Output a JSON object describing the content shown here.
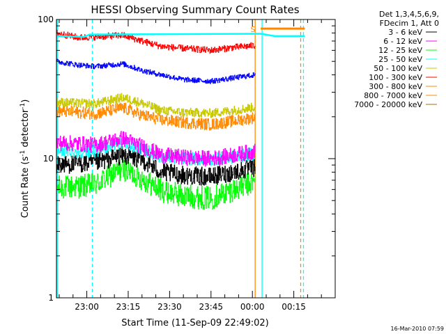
{
  "chart_data": {
    "type": "line",
    "title": "HESSI Observing Summary Count Rates",
    "xlabel": "Start Time (11-Sep-09 22:49:02)",
    "ylabel_parts": [
      "Count Rate (s",
      "-1",
      " detector",
      "-1",
      ")"
    ],
    "timestamp": "16-Mar-2010 07:59",
    "y_scale": "log",
    "ylim": [
      1,
      100
    ],
    "y_ticks": [
      {
        "value": 1,
        "label": "1"
      },
      {
        "value": 10,
        "label": "10"
      },
      {
        "value": 100,
        "label": "100"
      }
    ],
    "xlim_minutes": [
      0,
      101
    ],
    "x_ticks": [
      {
        "label": "23:00",
        "minute": 11
      },
      {
        "label": "23:15",
        "minute": 26
      },
      {
        "label": "23:30",
        "minute": 41
      },
      {
        "label": "23:45",
        "minute": 56
      },
      {
        "label": "00:00",
        "minute": 71
      },
      {
        "label": "00:15",
        "minute": 86
      }
    ],
    "legend_position": "top-right, outside plot",
    "legend_header": [
      "Det 1,3,4,5,6,9,",
      "FDecim 1, Att 0"
    ],
    "series": [
      {
        "name": "3 - 6 keV",
        "color": "#000000",
        "anchors": [
          [
            0,
            9.0
          ],
          [
            8,
            9.2
          ],
          [
            14,
            9.3
          ],
          [
            24,
            10.6
          ],
          [
            31,
            9.8
          ],
          [
            38,
            8.0
          ],
          [
            46,
            7.6
          ],
          [
            56,
            7.4
          ],
          [
            64,
            8.0
          ],
          [
            72,
            8.6
          ]
        ],
        "noise": 0.07
      },
      {
        "name": "6 - 12 keV",
        "color": "#ff00ff",
        "anchors": [
          [
            0,
            13.0
          ],
          [
            8,
            12.8
          ],
          [
            14,
            12.5
          ],
          [
            24,
            14.0
          ],
          [
            31,
            12.2
          ],
          [
            38,
            10.6
          ],
          [
            46,
            10.2
          ],
          [
            56,
            10.0
          ],
          [
            64,
            10.6
          ],
          [
            72,
            11.3
          ]
        ],
        "noise": 0.06
      },
      {
        "name": "12 - 25 keV",
        "color": "#00ff00",
        "anchors": [
          [
            0,
            6.2
          ],
          [
            8,
            6.3
          ],
          [
            14,
            6.5
          ],
          [
            24,
            8.5
          ],
          [
            31,
            7.2
          ],
          [
            38,
            5.9
          ],
          [
            46,
            5.4
          ],
          [
            56,
            5.2
          ],
          [
            64,
            6.0
          ],
          [
            72,
            6.8
          ]
        ],
        "noise": 0.09
      },
      {
        "name": "25 - 50 keV",
        "color": "#00ffff",
        "anchors": [
          [
            0,
            11.5
          ],
          [
            8,
            11.3
          ],
          [
            14,
            11.4
          ],
          [
            24,
            13.2
          ],
          [
            31,
            11.7
          ],
          [
            38,
            10.3
          ],
          [
            46,
            10.0
          ],
          [
            56,
            9.9
          ],
          [
            64,
            10.3
          ],
          [
            72,
            10.9
          ]
        ],
        "noise": 0.05
      },
      {
        "name": "50 - 100 keV",
        "color": "#c8c800",
        "anchors": [
          [
            0,
            25.5
          ],
          [
            8,
            25.0
          ],
          [
            14,
            24.8
          ],
          [
            24,
            27.5
          ],
          [
            31,
            25.0
          ],
          [
            38,
            22.2
          ],
          [
            46,
            21.5
          ],
          [
            56,
            21.2
          ],
          [
            64,
            22.2
          ],
          [
            72,
            23.5
          ]
        ],
        "noise": 0.035
      },
      {
        "name": "100 - 300 keV",
        "color": "#ff0000",
        "anchors": [
          [
            0,
            80
          ],
          [
            8,
            74
          ],
          [
            14,
            75
          ],
          [
            24,
            77
          ],
          [
            31,
            70
          ],
          [
            38,
            64
          ],
          [
            46,
            62
          ],
          [
            56,
            60
          ],
          [
            64,
            63
          ],
          [
            72,
            65
          ]
        ],
        "noise": 0.025
      },
      {
        "name": "300 - 800 keV",
        "color": "#ff8800",
        "anchors": [
          [
            0,
            22.0
          ],
          [
            8,
            21.5
          ],
          [
            14,
            21.0
          ],
          [
            24,
            23.2
          ],
          [
            31,
            20.5
          ],
          [
            38,
            19.0
          ],
          [
            46,
            18.2
          ],
          [
            56,
            17.6
          ],
          [
            64,
            18.6
          ],
          [
            72,
            19.8
          ]
        ],
        "noise": 0.045
      },
      {
        "name": "800 - 7000 keV",
        "color": "#ff8800",
        "anchors": [
          [
            74,
            86
          ],
          [
            90,
            86
          ]
        ],
        "noise": 0
      },
      {
        "name": "7000 - 20000 keV",
        "color": "#a07000",
        "anchors": [],
        "noise": 0
      }
    ],
    "extra_lines": {
      "blue_trace": {
        "color": "#0000ff",
        "anchors": [
          [
            0,
            50
          ],
          [
            8,
            47
          ],
          [
            14,
            46
          ],
          [
            24,
            48
          ],
          [
            31,
            43
          ],
          [
            38,
            40
          ],
          [
            46,
            37
          ],
          [
            56,
            36
          ],
          [
            64,
            38
          ],
          [
            72,
            40
          ]
        ],
        "noise": 0.02
      },
      "cyan_top_trace": {
        "color": "#00ffff",
        "anchors": [
          [
            0,
            76
          ],
          [
            10,
            75
          ],
          [
            12,
            78
          ],
          [
            74,
            79
          ],
          [
            79,
            76
          ],
          [
            90,
            76
          ]
        ]
      }
    },
    "vertical_lines": [
      {
        "minute": 0.3,
        "color": "#00ffff",
        "style": "solid"
      },
      {
        "minute": 13,
        "color": "#00ffff",
        "style": "dashed"
      },
      {
        "minute": 72,
        "color": "#ff8800",
        "style": "solid"
      },
      {
        "minute": 74.5,
        "color": "#00ffff",
        "style": "solid"
      },
      {
        "minute": 88.5,
        "color": "#ff8800",
        "style": "dashed"
      },
      {
        "minute": 89.5,
        "color": "#00ffff",
        "style": "dashed"
      }
    ],
    "annotations": [
      {
        "text": "S",
        "minute": 71.2,
        "y": 86,
        "color": "#ff8800"
      }
    ],
    "grid": false
  }
}
